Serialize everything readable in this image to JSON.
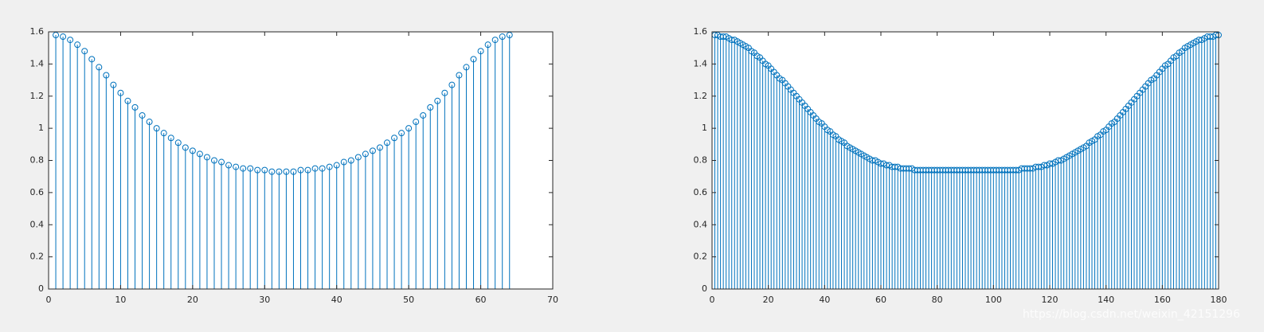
{
  "chart_data": [
    {
      "type": "stem",
      "color": "#0072bd",
      "xlim": [
        0,
        70
      ],
      "xticks": [
        0,
        10,
        20,
        30,
        40,
        50,
        60,
        70
      ],
      "ylim": [
        0,
        1.6
      ],
      "yticks": [
        0,
        0.2,
        0.4,
        0.6,
        0.8,
        1,
        1.2,
        1.4,
        1.6
      ],
      "x": [
        1,
        2,
        3,
        4,
        5,
        6,
        7,
        8,
        9,
        10,
        11,
        12,
        13,
        14,
        15,
        16,
        17,
        18,
        19,
        20,
        21,
        22,
        23,
        24,
        25,
        26,
        27,
        28,
        29,
        30,
        31,
        32,
        33,
        34,
        35,
        36,
        37,
        38,
        39,
        40,
        41,
        42,
        43,
        44,
        45,
        46,
        47,
        48,
        49,
        50,
        51,
        52,
        53,
        54,
        55,
        56,
        57,
        58,
        59,
        60,
        61,
        62,
        63,
        64
      ],
      "values": [
        1.58,
        1.57,
        1.55,
        1.52,
        1.48,
        1.43,
        1.38,
        1.33,
        1.27,
        1.22,
        1.17,
        1.13,
        1.08,
        1.04,
        1.0,
        0.97,
        0.94,
        0.91,
        0.88,
        0.86,
        0.84,
        0.82,
        0.8,
        0.79,
        0.77,
        0.76,
        0.75,
        0.75,
        0.74,
        0.74,
        0.73,
        0.73,
        0.73,
        0.73,
        0.74,
        0.74,
        0.75,
        0.75,
        0.76,
        0.77,
        0.79,
        0.8,
        0.82,
        0.84,
        0.86,
        0.88,
        0.91,
        0.94,
        0.97,
        1.0,
        1.04,
        1.08,
        1.13,
        1.17,
        1.22,
        1.27,
        1.33,
        1.38,
        1.43,
        1.48,
        1.52,
        1.55,
        1.57,
        1.58
      ]
    },
    {
      "type": "stem",
      "color": "#0072bd",
      "xlim": [
        0,
        180
      ],
      "xticks": [
        0,
        20,
        40,
        60,
        80,
        100,
        120,
        140,
        160,
        180
      ],
      "ylim": [
        0,
        1.6
      ],
      "yticks": [
        0,
        0.2,
        0.4,
        0.6,
        0.8,
        1,
        1.2,
        1.4,
        1.6
      ],
      "x": [
        1,
        2,
        3,
        4,
        5,
        6,
        7,
        8,
        9,
        10,
        11,
        12,
        13,
        14,
        15,
        16,
        17,
        18,
        19,
        20,
        21,
        22,
        23,
        24,
        25,
        26,
        27,
        28,
        29,
        30,
        31,
        32,
        33,
        34,
        35,
        36,
        37,
        38,
        39,
        40,
        41,
        42,
        43,
        44,
        45,
        46,
        47,
        48,
        49,
        50,
        51,
        52,
        53,
        54,
        55,
        56,
        57,
        58,
        59,
        60,
        61,
        62,
        63,
        64,
        65,
        66,
        67,
        68,
        69,
        70,
        71,
        72,
        73,
        74,
        75,
        76,
        77,
        78,
        79,
        80,
        81,
        82,
        83,
        84,
        85,
        86,
        87,
        88,
        89,
        90,
        91,
        92,
        93,
        94,
        95,
        96,
        97,
        98,
        99,
        100,
        101,
        102,
        103,
        104,
        105,
        106,
        107,
        108,
        109,
        110,
        111,
        112,
        113,
        114,
        115,
        116,
        117,
        118,
        119,
        120,
        121,
        122,
        123,
        124,
        125,
        126,
        127,
        128,
        129,
        130,
        131,
        132,
        133,
        134,
        135,
        136,
        137,
        138,
        139,
        140,
        141,
        142,
        143,
        144,
        145,
        146,
        147,
        148,
        149,
        150,
        151,
        152,
        153,
        154,
        155,
        156,
        157,
        158,
        159,
        160,
        161,
        162,
        163,
        164,
        165,
        166,
        167,
        168,
        169,
        170,
        171,
        172,
        173,
        174,
        175,
        176,
        177,
        178,
        179,
        180
      ],
      "values": [
        1.58,
        1.58,
        1.57,
        1.57,
        1.57,
        1.56,
        1.55,
        1.55,
        1.54,
        1.53,
        1.52,
        1.51,
        1.5,
        1.48,
        1.47,
        1.45,
        1.44,
        1.42,
        1.4,
        1.39,
        1.37,
        1.35,
        1.33,
        1.31,
        1.3,
        1.28,
        1.26,
        1.24,
        1.22,
        1.2,
        1.18,
        1.16,
        1.14,
        1.12,
        1.1,
        1.08,
        1.06,
        1.04,
        1.03,
        1.01,
        0.99,
        0.98,
        0.96,
        0.95,
        0.93,
        0.92,
        0.91,
        0.89,
        0.88,
        0.87,
        0.86,
        0.85,
        0.84,
        0.83,
        0.82,
        0.81,
        0.8,
        0.8,
        0.79,
        0.78,
        0.78,
        0.77,
        0.77,
        0.76,
        0.76,
        0.76,
        0.75,
        0.75,
        0.75,
        0.75,
        0.75,
        0.74,
        0.74,
        0.74,
        0.74,
        0.74,
        0.74,
        0.74,
        0.74,
        0.74,
        0.74,
        0.74,
        0.74,
        0.74,
        0.74,
        0.74,
        0.74,
        0.74,
        0.74,
        0.74,
        0.74,
        0.74,
        0.74,
        0.74,
        0.74,
        0.74,
        0.74,
        0.74,
        0.74,
        0.74,
        0.74,
        0.74,
        0.74,
        0.74,
        0.74,
        0.74,
        0.74,
        0.74,
        0.74,
        0.75,
        0.75,
        0.75,
        0.75,
        0.75,
        0.76,
        0.76,
        0.76,
        0.77,
        0.77,
        0.78,
        0.78,
        0.79,
        0.8,
        0.8,
        0.81,
        0.82,
        0.83,
        0.84,
        0.85,
        0.86,
        0.87,
        0.88,
        0.89,
        0.91,
        0.92,
        0.93,
        0.95,
        0.96,
        0.98,
        0.99,
        1.01,
        1.03,
        1.04,
        1.06,
        1.08,
        1.1,
        1.12,
        1.14,
        1.16,
        1.18,
        1.2,
        1.22,
        1.24,
        1.26,
        1.28,
        1.3,
        1.31,
        1.33,
        1.35,
        1.37,
        1.39,
        1.4,
        1.42,
        1.44,
        1.45,
        1.47,
        1.48,
        1.5,
        1.51,
        1.52,
        1.53,
        1.54,
        1.55,
        1.55,
        1.56,
        1.57,
        1.57,
        1.57,
        1.58,
        1.58
      ]
    }
  ],
  "watermark": "https://blog.csdn.net/weixin_42151296"
}
